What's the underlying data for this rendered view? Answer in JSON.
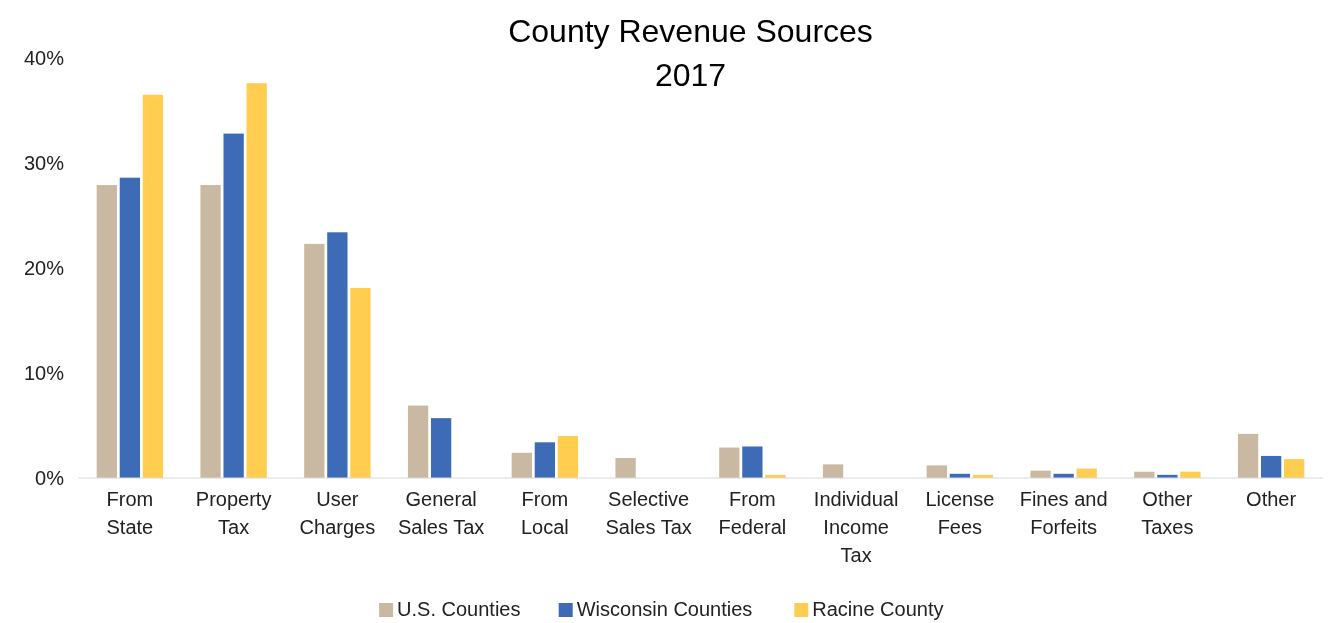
{
  "chart_data": {
    "type": "bar",
    "title": "County Revenue Sources",
    "subtitle": "2017",
    "categories": [
      "From State",
      "Property Tax",
      "User Charges",
      "General Sales Tax",
      "From Local",
      "Selective Sales Tax",
      "From Federal",
      "Individual Income Tax",
      "License Fees",
      "Fines and Forfeits",
      "Other Taxes",
      "Other"
    ],
    "series": [
      {
        "name": "U.S. Counties",
        "color": "#c9b9a3",
        "values": [
          27.9,
          27.9,
          22.3,
          6.9,
          2.4,
          1.9,
          2.9,
          1.3,
          1.2,
          0.7,
          0.6,
          4.2
        ]
      },
      {
        "name": "Wisconsin Counties",
        "color": "#3e6bb5",
        "values": [
          28.6,
          32.8,
          23.4,
          5.7,
          3.4,
          null,
          3.0,
          null,
          0.4,
          0.4,
          0.3,
          2.1
        ]
      },
      {
        "name": "Racine County",
        "color": "#ffcd4f",
        "values": [
          36.5,
          37.6,
          18.1,
          null,
          4.0,
          null,
          0.3,
          null,
          0.3,
          0.9,
          0.6,
          1.8
        ]
      }
    ],
    "ylim": [
      0,
      40
    ],
    "yticks": [
      {
        "value": 0,
        "label": "0%"
      },
      {
        "value": 10,
        "label": "10%"
      },
      {
        "value": 20,
        "label": "20%"
      },
      {
        "value": 30,
        "label": "30%"
      },
      {
        "value": 40,
        "label": "40%"
      }
    ],
    "legend": "bottom"
  }
}
